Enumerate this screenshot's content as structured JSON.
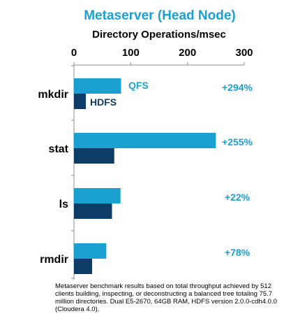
{
  "chart_data": {
    "type": "bar",
    "orientation": "horizontal",
    "title": "Metaserver (Head Node)",
    "subtitle": "Directory Operations/msec",
    "x_axis": {
      "position": "top",
      "range": [
        0,
        300
      ],
      "ticks": [
        "0",
        "100",
        "200",
        "300"
      ]
    },
    "categories": [
      "mkdir",
      "stat",
      "ls",
      "rmdir"
    ],
    "series": [
      {
        "name": "QFS",
        "values": [
          83,
          250,
          82,
          57
        ],
        "color": "#1ba1d1"
      },
      {
        "name": "HDFS",
        "values": [
          21,
          71,
          67,
          32
        ],
        "color": "#0d3d66"
      }
    ],
    "annotations": [
      "+294%",
      "+255%",
      "+22%",
      "+78%"
    ],
    "legend": {
      "placement": "inline-next-to-first-category",
      "labels": [
        "QFS",
        "HDFS"
      ]
    },
    "grid": false,
    "colors": {
      "title": "#1ba1d1",
      "annotation": "#1ba1d1",
      "axis": "#8c8c8c",
      "text": "#000000"
    }
  },
  "footnote": "Metaserver benchmark results based on total throughput achieved by 512 clients building, inspecting, or deconstructing a balanced tree totaling 75.7 million directories.  Dual E5-2670, 64GB RAM, HDFS version 2.0.0-cdh4.0.0 (Cloudera 4.0)."
}
